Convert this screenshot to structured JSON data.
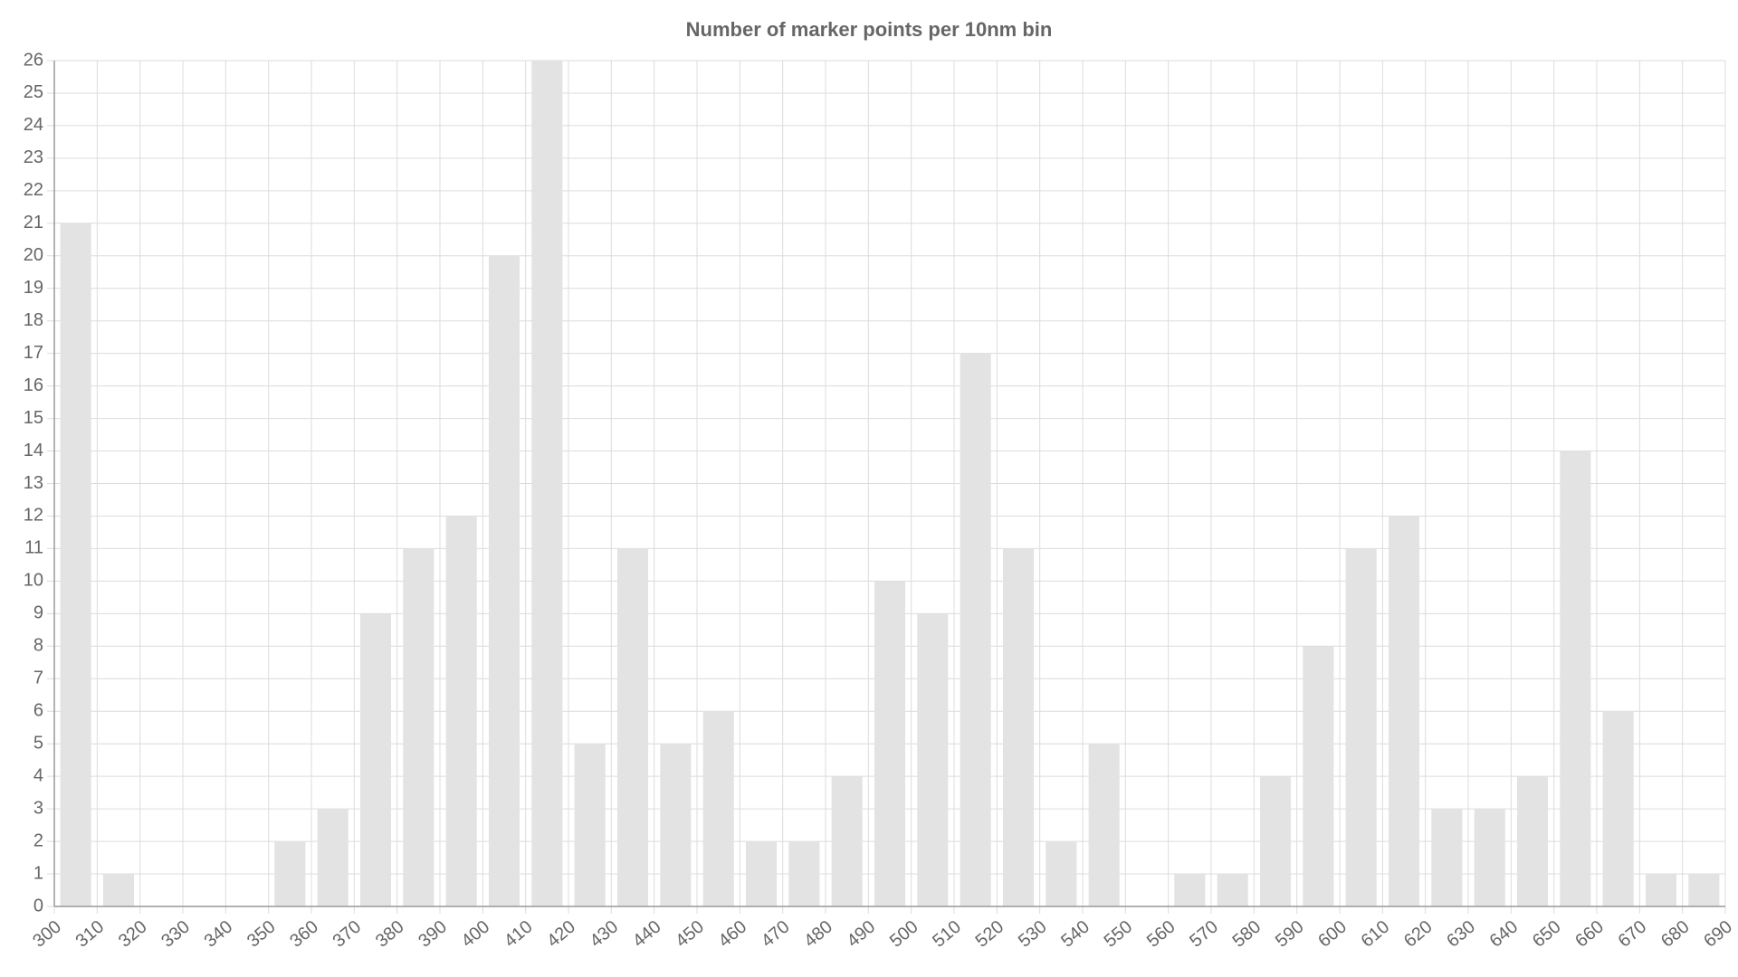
{
  "chart_data": {
    "type": "histogram",
    "title": "Number of marker points per 10nm bin",
    "bins": [
      300,
      310,
      320,
      330,
      340,
      350,
      360,
      370,
      380,
      390,
      400,
      410,
      420,
      430,
      440,
      450,
      460,
      470,
      480,
      490,
      500,
      510,
      520,
      530,
      540,
      550,
      560,
      570,
      580,
      590,
      600,
      610,
      620,
      630,
      640,
      650,
      660,
      670,
      680,
      690
    ],
    "values": [
      21,
      1,
      0,
      0,
      0,
      2,
      3,
      9,
      11,
      12,
      20,
      26,
      5,
      11,
      5,
      6,
      2,
      2,
      4,
      10,
      9,
      17,
      11,
      2,
      5,
      0,
      1,
      1,
      4,
      8,
      11,
      12,
      3,
      3,
      4,
      14,
      6,
      1,
      1
    ],
    "color": "#e3e3e3",
    "xlim": [
      300,
      690
    ],
    "xticks": [
      300,
      310,
      320,
      330,
      340,
      350,
      360,
      370,
      380,
      390,
      400,
      410,
      420,
      430,
      440,
      450,
      460,
      470,
      480,
      490,
      500,
      510,
      520,
      530,
      540,
      550,
      560,
      570,
      580,
      590,
      600,
      610,
      620,
      630,
      640,
      650,
      660,
      670,
      680,
      690
    ],
    "ylim": [
      0,
      26
    ],
    "yticks": [
      0,
      1,
      2,
      3,
      4,
      5,
      6,
      7,
      8,
      9,
      10,
      11,
      12,
      13,
      14,
      15,
      16,
      17,
      18,
      19,
      20,
      21,
      22,
      23,
      24,
      25,
      26
    ],
    "grid": true
  }
}
